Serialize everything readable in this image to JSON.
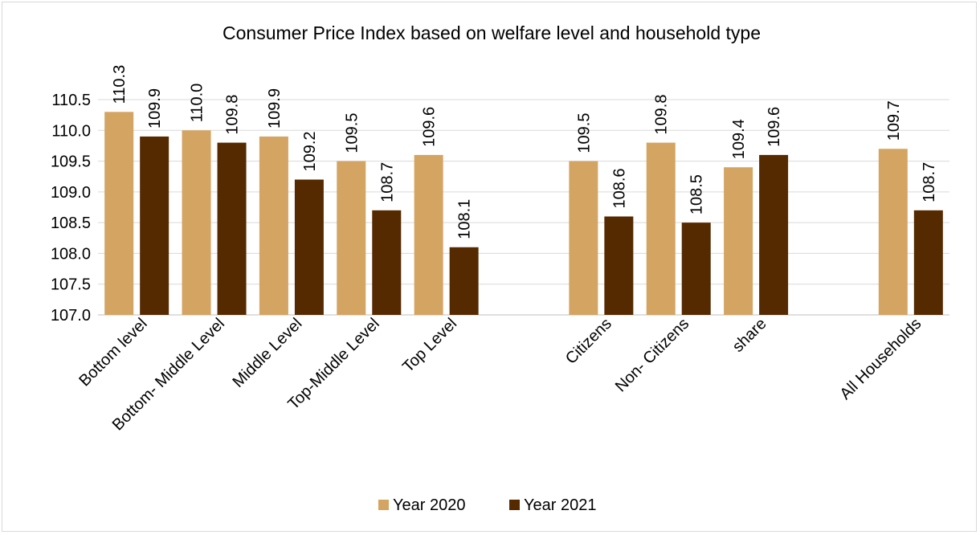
{
  "chart_data": {
    "type": "bar",
    "title": "Consumer Price Index based on welfare level and household type",
    "categories": [
      "Bottom level",
      "Bottom- Middle  Level",
      "Middle Level",
      "Top-Middle Level",
      "Top Level",
      "",
      "Citizens",
      "Non- Citizens",
      "share",
      "",
      "All Households"
    ],
    "series": [
      {
        "name": "Year 2020",
        "color": "#d4a462",
        "values": [
          110.3,
          110.0,
          109.9,
          109.5,
          109.6,
          null,
          109.5,
          109.8,
          109.4,
          null,
          109.7
        ]
      },
      {
        "name": "Year 2021",
        "color": "#552a00",
        "values": [
          109.9,
          109.8,
          109.2,
          108.7,
          108.1,
          null,
          108.6,
          108.5,
          109.6,
          null,
          108.7
        ]
      }
    ],
    "yticks": [
      "107.0",
      "107.5",
      "108.0",
      "108.5",
      "109.0",
      "109.5",
      "110.0",
      "110.5"
    ],
    "ylim": [
      107.0,
      110.5
    ],
    "grid": true,
    "legend": "bottom"
  }
}
